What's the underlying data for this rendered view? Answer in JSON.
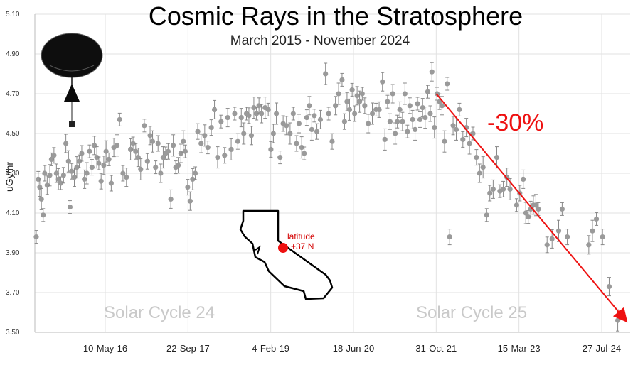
{
  "chart_data": {
    "type": "scatter",
    "title": "Cosmic Rays in the Stratosphere",
    "subtitle": "March 2015 - November 2024",
    "ylabel": "uGy/hr",
    "xlabel": "",
    "ylim": [
      3.5,
      5.1
    ],
    "yticks": [
      "5.10",
      "4.90",
      "4.70",
      "4.50",
      "4.30",
      "4.10",
      "3.90",
      "3.70",
      "3.50"
    ],
    "xticks": [
      "10-May-16",
      "22-Sep-17",
      "4-Feb-19",
      "18-Jun-20",
      "31-Oct-21",
      "15-Mar-23",
      "27-Jul-24"
    ],
    "xtick_dates": [
      "2016-05-10",
      "2017-09-22",
      "2019-02-04",
      "2020-06-18",
      "2021-10-31",
      "2023-03-15",
      "2024-07-27"
    ],
    "grid": true,
    "marker_color": "#9a9a9a",
    "trend_color": "#ee1111",
    "annotations": {
      "change": "-30%",
      "cycle24": "Solar Cycle 24",
      "cycle25": "Solar Cycle 25",
      "latitude_line1": "latitude",
      "latitude_line2": "+37 N"
    },
    "trend": {
      "from": [
        "2021-10-31",
        4.7
      ],
      "to": [
        "2024-11-15",
        3.56
      ]
    },
    "points": [
      [
        "2015-03-20",
        3.98
      ],
      [
        "2015-04-01",
        4.27
      ],
      [
        "2015-04-10",
        4.23
      ],
      [
        "2015-04-20",
        4.17
      ],
      [
        "2015-05-01",
        4.09
      ],
      [
        "2015-05-10",
        4.3
      ],
      [
        "2015-05-25",
        4.24
      ],
      [
        "2015-06-10",
        4.29
      ],
      [
        "2015-06-20",
        4.37
      ],
      [
        "2015-07-05",
        4.39
      ],
      [
        "2015-07-20",
        4.3
      ],
      [
        "2015-08-01",
        4.27
      ],
      [
        "2015-08-15",
        4.25
      ],
      [
        "2015-09-01",
        4.29
      ],
      [
        "2015-09-15",
        4.45
      ],
      [
        "2015-10-01",
        4.36
      ],
      [
        "2015-10-10",
        4.13
      ],
      [
        "2015-10-20",
        4.31
      ],
      [
        "2015-11-05",
        4.28
      ],
      [
        "2015-11-20",
        4.33
      ],
      [
        "2015-12-05",
        4.36
      ],
      [
        "2015-12-20",
        4.4
      ],
      [
        "2016-01-05",
        4.27
      ],
      [
        "2016-01-20",
        4.3
      ],
      [
        "2016-02-05",
        4.41
      ],
      [
        "2016-02-20",
        4.33
      ],
      [
        "2016-03-05",
        4.44
      ],
      [
        "2016-03-20",
        4.38
      ],
      [
        "2016-04-01",
        4.35
      ],
      [
        "2016-04-15",
        4.26
      ],
      [
        "2016-05-01",
        4.34
      ],
      [
        "2016-05-15",
        4.41
      ],
      [
        "2016-06-01",
        4.37
      ],
      [
        "2016-06-15",
        4.25
      ],
      [
        "2016-07-01",
        4.43
      ],
      [
        "2016-07-20",
        4.44
      ],
      [
        "2016-08-05",
        4.57
      ],
      [
        "2016-08-25",
        4.3
      ],
      [
        "2016-09-15",
        4.28
      ],
      [
        "2016-10-10",
        4.42
      ],
      [
        "2016-10-25",
        4.45
      ],
      [
        "2016-11-10",
        4.41
      ],
      [
        "2016-11-25",
        4.38
      ],
      [
        "2016-12-10",
        4.32
      ],
      [
        "2017-01-01",
        4.54
      ],
      [
        "2017-01-20",
        4.36
      ],
      [
        "2017-02-05",
        4.49
      ],
      [
        "2017-02-20",
        4.46
      ],
      [
        "2017-03-10",
        4.33
      ],
      [
        "2017-03-25",
        4.45
      ],
      [
        "2017-04-10",
        4.3
      ],
      [
        "2017-04-25",
        4.38
      ],
      [
        "2017-05-10",
        4.4
      ],
      [
        "2017-05-25",
        4.41
      ],
      [
        "2017-06-10",
        4.17
      ],
      [
        "2017-06-25",
        4.44
      ],
      [
        "2017-07-10",
        4.33
      ],
      [
        "2017-07-25",
        4.34
      ],
      [
        "2017-08-10",
        4.4
      ],
      [
        "2017-08-25",
        4.46
      ],
      [
        "2017-09-05",
        4.41
      ],
      [
        "2017-09-20",
        4.23
      ],
      [
        "2017-10-05",
        4.16
      ],
      [
        "2017-10-20",
        4.27
      ],
      [
        "2017-11-05",
        4.3
      ],
      [
        "2017-11-20",
        4.51
      ],
      [
        "2017-12-10",
        4.45
      ],
      [
        "2018-01-01",
        4.49
      ],
      [
        "2018-01-20",
        4.43
      ],
      [
        "2018-02-10",
        4.53
      ],
      [
        "2018-03-01",
        4.62
      ],
      [
        "2018-03-20",
        4.38
      ],
      [
        "2018-04-10",
        4.56
      ],
      [
        "2018-05-01",
        4.39
      ],
      [
        "2018-05-20",
        4.58
      ],
      [
        "2018-06-10",
        4.42
      ],
      [
        "2018-07-01",
        4.6
      ],
      [
        "2018-07-20",
        4.46
      ],
      [
        "2018-08-10",
        4.58
      ],
      [
        "2018-08-25",
        4.5
      ],
      [
        "2018-09-10",
        4.6
      ],
      [
        "2018-09-25",
        4.59
      ],
      [
        "2018-10-10",
        4.49
      ],
      [
        "2018-10-25",
        4.63
      ],
      [
        "2018-11-10",
        4.6
      ],
      [
        "2018-11-25",
        4.64
      ],
      [
        "2018-12-10",
        4.6
      ],
      [
        "2019-01-01",
        4.63
      ],
      [
        "2019-01-20",
        4.62
      ],
      [
        "2019-02-05",
        4.42
      ],
      [
        "2019-02-20",
        4.5
      ],
      [
        "2019-03-10",
        4.6
      ],
      [
        "2019-04-01",
        4.38
      ],
      [
        "2019-04-20",
        4.55
      ],
      [
        "2019-05-10",
        4.54
      ],
      [
        "2019-06-01",
        4.5
      ],
      [
        "2019-06-20",
        4.6
      ],
      [
        "2019-07-10",
        4.45
      ],
      [
        "2019-07-25",
        4.55
      ],
      [
        "2019-08-10",
        4.43
      ],
      [
        "2019-08-25",
        4.4
      ],
      [
        "2019-09-10",
        4.58
      ],
      [
        "2019-09-25",
        4.64
      ],
      [
        "2019-10-10",
        4.52
      ],
      [
        "2019-10-25",
        4.59
      ],
      [
        "2019-11-10",
        4.51
      ],
      [
        "2019-12-01",
        4.57
      ],
      [
        "2020-01-01",
        4.8
      ],
      [
        "2020-01-20",
        4.6
      ],
      [
        "2020-02-10",
        4.46
      ],
      [
        "2020-03-01",
        4.64
      ],
      [
        "2020-03-20",
        4.7
      ],
      [
        "2020-04-10",
        4.77
      ],
      [
        "2020-04-25",
        4.56
      ],
      [
        "2020-05-10",
        4.66
      ],
      [
        "2020-05-25",
        4.62
      ],
      [
        "2020-06-10",
        4.72
      ],
      [
        "2020-06-25",
        4.6
      ],
      [
        "2020-07-10",
        4.69
      ],
      [
        "2020-07-25",
        4.66
      ],
      [
        "2020-08-10",
        4.7
      ],
      [
        "2020-08-25",
        4.64
      ],
      [
        "2020-09-15",
        4.55
      ],
      [
        "2020-10-10",
        4.6
      ],
      [
        "2020-11-01",
        4.62
      ],
      [
        "2020-11-20",
        4.62
      ],
      [
        "2020-12-10",
        4.76
      ],
      [
        "2020-12-25",
        4.47
      ],
      [
        "2021-01-10",
        4.66
      ],
      [
        "2021-01-25",
        4.56
      ],
      [
        "2021-02-10",
        4.7
      ],
      [
        "2021-02-25",
        4.5
      ],
      [
        "2021-03-10",
        4.56
      ],
      [
        "2021-03-25",
        4.62
      ],
      [
        "2021-04-10",
        4.56
      ],
      [
        "2021-04-25",
        4.7
      ],
      [
        "2021-05-10",
        4.51
      ],
      [
        "2021-05-25",
        4.64
      ],
      [
        "2021-06-10",
        4.57
      ],
      [
        "2021-06-25",
        4.52
      ],
      [
        "2021-07-10",
        4.65
      ],
      [
        "2021-07-25",
        4.57
      ],
      [
        "2021-08-10",
        4.63
      ],
      [
        "2021-08-25",
        4.58
      ],
      [
        "2021-09-10",
        4.71
      ],
      [
        "2021-09-25",
        4.6
      ],
      [
        "2021-10-05",
        4.81
      ],
      [
        "2021-10-20",
        4.53
      ],
      [
        "2021-11-05",
        4.7
      ],
      [
        "2021-11-20",
        4.66
      ],
      [
        "2021-12-05",
        4.64
      ],
      [
        "2021-12-20",
        4.46
      ],
      [
        "2022-01-05",
        4.75
      ],
      [
        "2022-01-20",
        3.98
      ],
      [
        "2022-02-10",
        4.54
      ],
      [
        "2022-03-01",
        4.52
      ],
      [
        "2022-03-20",
        4.62
      ],
      [
        "2022-04-10",
        4.47
      ],
      [
        "2022-05-01",
        4.53
      ],
      [
        "2022-05-20",
        4.45
      ],
      [
        "2022-06-10",
        4.5
      ],
      [
        "2022-07-01",
        4.38
      ],
      [
        "2022-07-20",
        4.3
      ],
      [
        "2022-08-10",
        4.33
      ],
      [
        "2022-09-01",
        4.09
      ],
      [
        "2022-09-20",
        4.2
      ],
      [
        "2022-10-10",
        4.22
      ],
      [
        "2022-11-01",
        4.38
      ],
      [
        "2022-11-20",
        4.21
      ],
      [
        "2022-12-10",
        4.22
      ],
      [
        "2023-01-01",
        4.28
      ],
      [
        "2023-01-20",
        4.22
      ],
      [
        "2023-03-01",
        4.14
      ],
      [
        "2023-03-20",
        4.2
      ],
      [
        "2023-04-10",
        4.27
      ],
      [
        "2023-04-25",
        4.1
      ],
      [
        "2023-05-10",
        4.08
      ],
      [
        "2023-05-25",
        4.12
      ],
      [
        "2023-06-10",
        4.14
      ],
      [
        "2023-06-25",
        4.14
      ],
      [
        "2023-07-10",
        4.12
      ],
      [
        "2023-09-01",
        3.94
      ],
      [
        "2023-10-01",
        3.97
      ],
      [
        "2023-11-10",
        4.01
      ],
      [
        "2023-12-01",
        4.12
      ],
      [
        "2024-01-01",
        3.98
      ],
      [
        "2024-05-10",
        3.94
      ],
      [
        "2024-06-01",
        4.01
      ],
      [
        "2024-06-25",
        4.07
      ],
      [
        "2024-08-01",
        3.98
      ],
      [
        "2024-09-10",
        3.73
      ],
      [
        "2024-11-01",
        3.56
      ]
    ]
  }
}
